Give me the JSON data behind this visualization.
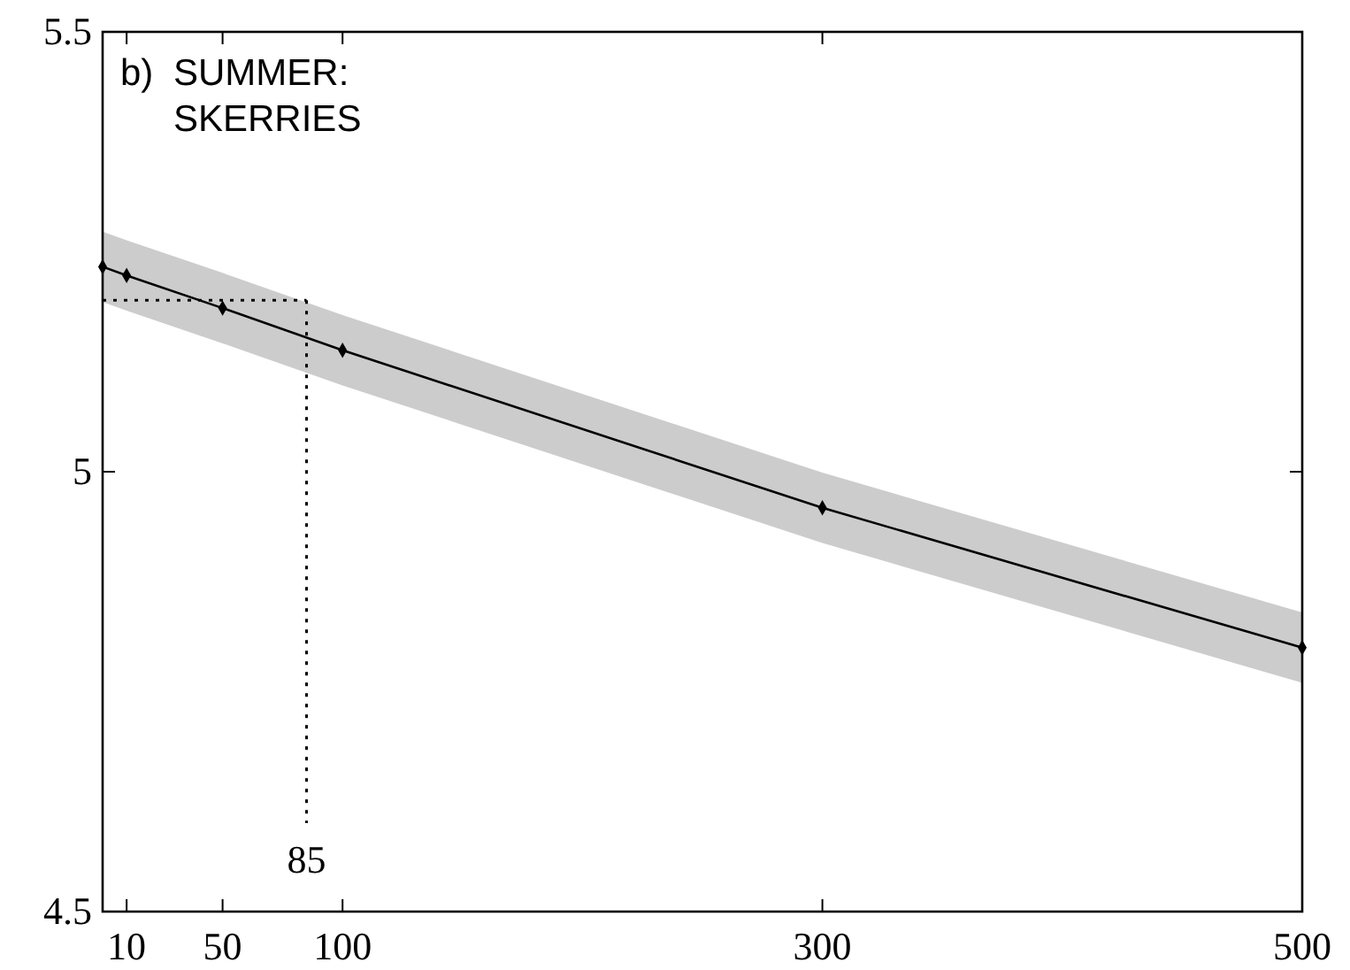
{
  "chart_data": {
    "type": "line",
    "x": [
      0,
      10,
      50,
      100,
      300,
      500
    ],
    "series": [
      {
        "color": "#000000",
        "values": [
          5.233,
          5.223,
          5.186,
          5.138,
          4.959,
          4.8
        ],
        "lower": [
          5.193,
          5.183,
          5.146,
          5.098,
          4.919,
          4.76
        ],
        "upper": [
          5.273,
          5.263,
          5.226,
          5.178,
          4.999,
          4.84
        ]
      }
    ],
    "xlim": [
      0,
      500
    ],
    "xticks": [
      10,
      50,
      100,
      300,
      500
    ],
    "ylim": [
      4.5,
      5.5
    ],
    "yticks": [
      4.5,
      5,
      5.5
    ],
    "marker": "diamond",
    "line_style": "solid",
    "ref_lines": [
      {
        "axis": "x",
        "value": 85,
        "label": "85",
        "line_style": "dotted"
      },
      {
        "axis": "y",
        "value": 5.195,
        "line_style": "dotted"
      }
    ],
    "annotations": [
      "b)",
      "SUMMER:",
      "SKERRIES"
    ]
  }
}
